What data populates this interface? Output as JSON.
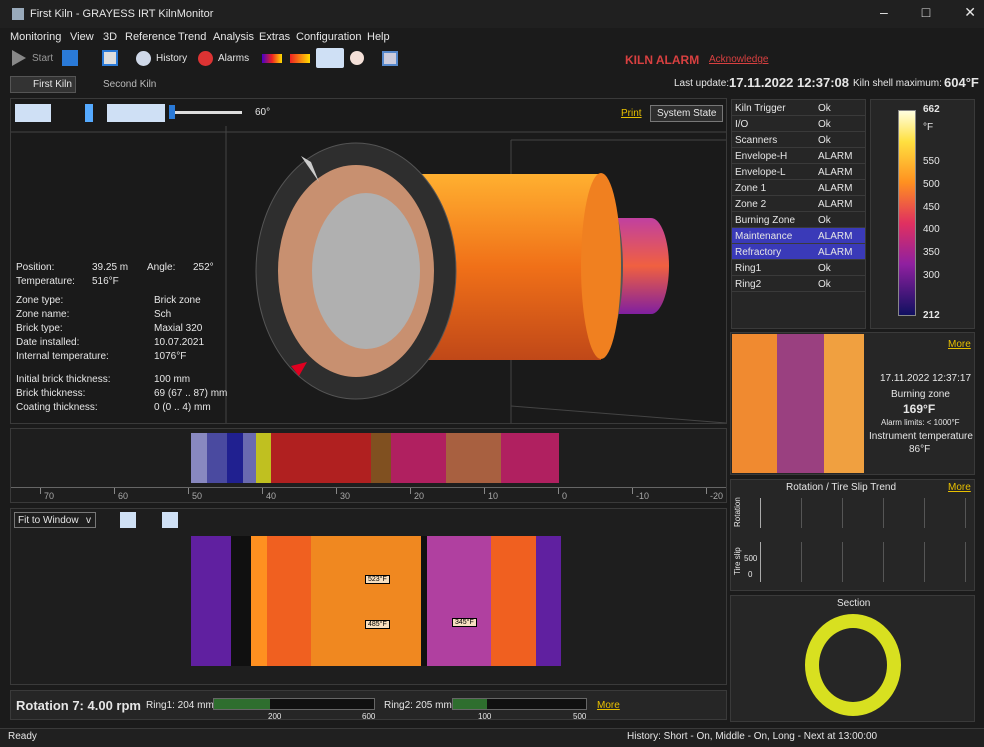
{
  "window": {
    "title": "First Kiln - GRAYESS IRT KilnMonitor"
  },
  "menu": [
    "Monitoring",
    "View",
    "3D",
    "Reference",
    "Trend",
    "Analysis",
    "Extras",
    "Configuration",
    "Help"
  ],
  "toolbar": {
    "start": "Start",
    "history": "History",
    "alarms": "Alarms"
  },
  "alarm": {
    "text": "KILN ALARM",
    "acknowledge": "Acknowledge"
  },
  "tabs": [
    "First Kiln",
    "Second Kiln"
  ],
  "status_line": {
    "last_update_label": "Last update:",
    "last_update": "17.11.2022 12:37:08",
    "shell_max_label": "Kiln shell maximum:",
    "shell_max": "604°F"
  },
  "view3d": {
    "angle": "60°",
    "print": "Print",
    "system_state": "System State"
  },
  "info": {
    "angle_label": "Angle:",
    "angle": "252°",
    "rows": [
      {
        "label": "Position:",
        "value": "39.25 m"
      },
      {
        "label": "Temperature:",
        "value": "516°F"
      },
      {
        "label": "Zone type:",
        "value": "Brick zone"
      },
      {
        "label": "Zone name:",
        "value": "Sch"
      },
      {
        "label": "Brick type:",
        "value": "Maxial 320"
      },
      {
        "label": "Date installed:",
        "value": "10.07.2021"
      },
      {
        "label": "Internal temperature:",
        "value": "1076°F"
      },
      {
        "label": "Initial brick thickness:",
        "value": "100 mm"
      },
      {
        "label": "Brick thickness:",
        "value": "69 (67 .. 87) mm"
      },
      {
        "label": "Coating thickness:",
        "value": "0 (0 .. 4) mm"
      }
    ]
  },
  "state_table": [
    [
      "Kiln Trigger",
      "Ok"
    ],
    [
      "I/O",
      "Ok"
    ],
    [
      "Scanners",
      "Ok"
    ],
    [
      "Envelope-H",
      "ALARM"
    ],
    [
      "Envelope-L",
      "ALARM"
    ],
    [
      "Zone 1",
      "ALARM"
    ],
    [
      "Zone 2",
      "ALARM"
    ],
    [
      "Burning Zone",
      "Ok"
    ],
    [
      "Maintenance",
      "ALARM"
    ],
    [
      "Refractory",
      "ALARM"
    ],
    [
      "Ring1",
      "Ok"
    ],
    [
      "Ring2",
      "Ok"
    ]
  ],
  "color_scale": [
    "662",
    "°F",
    "550",
    "500",
    "450",
    "400",
    "350",
    "300",
    "212"
  ],
  "camera": {
    "more": "More",
    "time": "17.11.2022 12:37:17",
    "zone": "Burning zone",
    "temp": "169°F",
    "limits": "Alarm limits: < 1000°F",
    "instrument_label": "Instrument temperature",
    "instrument_temp": "86°F"
  },
  "trend": {
    "title": "Rotation / Tire Slip Trend",
    "more": "More",
    "rotation": "Rotation",
    "tire_slip": "Tire slip",
    "tick_500": "500",
    "tick_0": "0"
  },
  "section": {
    "title": "Section"
  },
  "ruler": [
    "70",
    "60",
    "50",
    "40",
    "30",
    "20",
    "10",
    "0",
    "-10",
    "-20"
  ],
  "scan": {
    "fit": "Fit to Window",
    "dropdown": "v",
    "labels": [
      "523°F",
      "485°F",
      "345°F"
    ]
  },
  "bottom": {
    "rotation": "Rotation 7: 4.00 rpm",
    "ring1": "Ring1: 204 mm",
    "ring1_ticks": [
      "200",
      "600"
    ],
    "ring2": "Ring2: 205 mm",
    "ring2_ticks": [
      "100",
      "500"
    ],
    "more": "More"
  },
  "statusbar": {
    "ready": "Ready",
    "history": "History: Short - On, Middle - On, Long - Next at 13:00:00"
  }
}
